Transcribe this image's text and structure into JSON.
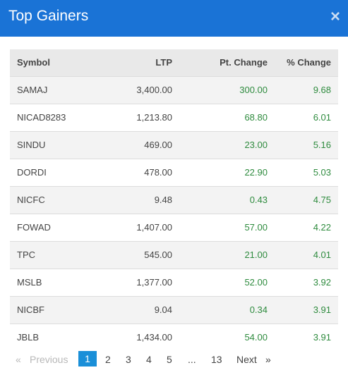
{
  "dialog": {
    "title": "Top Gainers",
    "close_glyph": "×"
  },
  "table": {
    "headers": {
      "symbol": "Symbol",
      "ltp": "LTP",
      "pt_change": "Pt. Change",
      "pct_change": "% Change"
    },
    "rows": [
      {
        "symbol": "SAMAJ",
        "ltp": "3,400.00",
        "pt_change": "300.00",
        "pct_change": "9.68"
      },
      {
        "symbol": "NICAD8283",
        "ltp": "1,213.80",
        "pt_change": "68.80",
        "pct_change": "6.01"
      },
      {
        "symbol": "SINDU",
        "ltp": "469.00",
        "pt_change": "23.00",
        "pct_change": "5.16"
      },
      {
        "symbol": "DORDI",
        "ltp": "478.00",
        "pt_change": "22.90",
        "pct_change": "5.03"
      },
      {
        "symbol": "NICFC",
        "ltp": "9.48",
        "pt_change": "0.43",
        "pct_change": "4.75"
      },
      {
        "symbol": "FOWAD",
        "ltp": "1,407.00",
        "pt_change": "57.00",
        "pct_change": "4.22"
      },
      {
        "symbol": "TPC",
        "ltp": "545.00",
        "pt_change": "21.00",
        "pct_change": "4.01"
      },
      {
        "symbol": "MSLB",
        "ltp": "1,377.00",
        "pt_change": "52.00",
        "pct_change": "3.92"
      },
      {
        "symbol": "NICBF",
        "ltp": "9.04",
        "pt_change": "0.34",
        "pct_change": "3.91"
      },
      {
        "symbol": "JBLB",
        "ltp": "1,434.00",
        "pt_change": "54.00",
        "pct_change": "3.91"
      }
    ]
  },
  "pagination": {
    "first_glyph": "«",
    "previous": "Previous",
    "pages": [
      "1",
      "2",
      "3",
      "4",
      "5"
    ],
    "active_page": "1",
    "ellipsis": "...",
    "last_page": "13",
    "next": "Next",
    "last_glyph": "»"
  },
  "colors": {
    "header": "#1a73d6",
    "positive": "#2e8b3e",
    "active_page": "#1a8fd8"
  }
}
